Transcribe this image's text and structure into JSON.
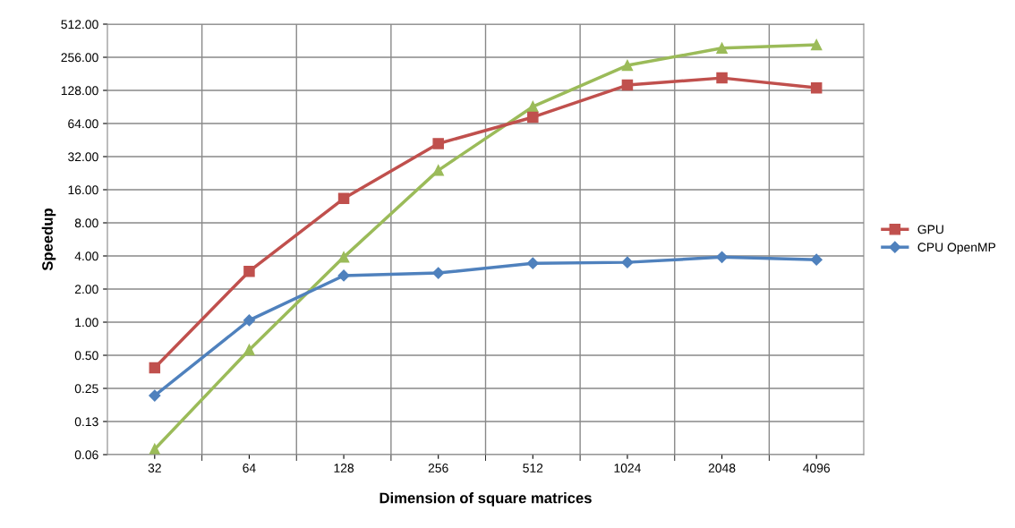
{
  "chart_data": {
    "type": "line",
    "xlabel": "Dimension of square matrices",
    "ylabel": "Speedup",
    "categories": [
      "32",
      "64",
      "128",
      "256",
      "512",
      "1024",
      "2048",
      "4096"
    ],
    "log": "y",
    "ylim": [
      0.0625,
      512
    ],
    "yticks": [
      {
        "value": 0.0625,
        "label": "0.06"
      },
      {
        "value": 0.125,
        "label": "0.13"
      },
      {
        "value": 0.25,
        "label": "0.25"
      },
      {
        "value": 0.5,
        "label": "0.50"
      },
      {
        "value": 1,
        "label": "1.00"
      },
      {
        "value": 2,
        "label": "2.00"
      },
      {
        "value": 4,
        "label": "4.00"
      },
      {
        "value": 8,
        "label": "8.00"
      },
      {
        "value": 16,
        "label": "16.00"
      },
      {
        "value": 32,
        "label": "32.00"
      },
      {
        "value": 64,
        "label": "64.00"
      },
      {
        "value": 128,
        "label": "128.00"
      },
      {
        "value": 256,
        "label": "256.00"
      },
      {
        "value": 512,
        "label": "512.00"
      }
    ],
    "grid": true,
    "legend": "right",
    "series": [
      {
        "color": "#9bbb59",
        "marker": "triangle",
        "values": [
          0.07,
          0.56,
          3.9,
          24,
          91,
          216,
          310,
          332
        ]
      },
      {
        "name": "GPU",
        "color": "#c0504d",
        "marker": "square",
        "values": [
          0.385,
          2.9,
          13.3,
          42,
          73,
          143,
          166,
          135
        ]
      },
      {
        "name": "CPU OpenMP",
        "color": "#4f81bd",
        "marker": "diamond",
        "values": [
          0.215,
          1.04,
          2.65,
          2.8,
          3.43,
          3.5,
          3.9,
          3.7
        ]
      }
    ]
  }
}
